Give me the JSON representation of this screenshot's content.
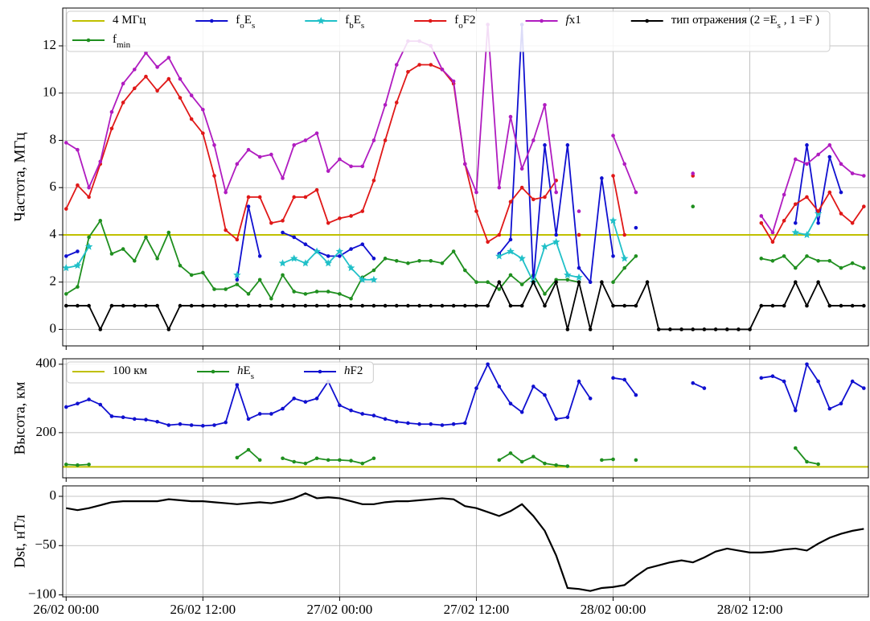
{
  "chart_data": [
    {
      "type": "line",
      "ylabel": "Частота, МГц",
      "grid": true,
      "legend": "upper left",
      "legend_ncol": 6,
      "xlim": [
        -0.3,
        70.4
      ],
      "xticks": [
        0,
        12,
        24,
        36,
        48,
        60
      ],
      "ylim": [
        -0.7,
        13.6
      ],
      "yticks": [
        0,
        2,
        4,
        6,
        8,
        10,
        12
      ],
      "hlines": [
        {
          "name": "4 МГц",
          "value": 4,
          "color": "#c0c000"
        }
      ],
      "x": [
        0,
        1,
        2,
        3,
        4,
        5,
        6,
        7,
        8,
        9,
        10,
        11,
        12,
        13,
        14,
        15,
        16,
        17,
        18,
        19,
        20,
        21,
        22,
        23,
        24,
        25,
        26,
        27,
        28,
        29,
        30,
        31,
        32,
        33,
        34,
        35,
        36,
        37,
        38,
        39,
        40,
        41,
        42,
        43,
        44,
        45,
        46,
        47,
        48,
        49,
        50,
        51,
        52,
        53,
        54,
        55,
        56,
        57,
        58,
        59,
        60,
        61,
        62,
        63,
        64,
        65,
        66,
        67,
        68,
        69,
        70
      ],
      "series": [
        {
          "name": "fmin",
          "color": "#1f8f1f",
          "marker": "o",
          "values": [
            1.5,
            1.8,
            3.9,
            4.6,
            3.2,
            3.4,
            2.9,
            3.9,
            3.0,
            4.1,
            2.7,
            2.3,
            2.4,
            1.7,
            1.7,
            1.9,
            1.5,
            2.1,
            1.3,
            2.3,
            1.6,
            1.5,
            1.6,
            1.6,
            1.5,
            1.3,
            2.2,
            2.5,
            3.0,
            2.9,
            2.8,
            2.9,
            2.9,
            2.8,
            3.3,
            2.5,
            2.0,
            2.0,
            1.7,
            2.3,
            1.9,
            2.3,
            1.5,
            2.1,
            2.1,
            2.0,
            null,
            null,
            2.0,
            2.6,
            3.1,
            null,
            null,
            null,
            null,
            5.2,
            null,
            null,
            null,
            null,
            null,
            3.0,
            2.9,
            3.1,
            2.6,
            3.1,
            2.9,
            2.9,
            2.6,
            2.8,
            2.6
          ]
        },
        {
          "name": "foEs",
          "color": "#1010d0",
          "marker": "o",
          "values": [
            3.1,
            3.3,
            null,
            null,
            null,
            null,
            null,
            null,
            null,
            null,
            null,
            null,
            null,
            null,
            null,
            2.1,
            5.2,
            3.1,
            null,
            4.1,
            3.9,
            3.6,
            3.3,
            3.1,
            3.1,
            3.4,
            3.6,
            3.0,
            null,
            null,
            null,
            null,
            null,
            null,
            null,
            null,
            null,
            null,
            3.2,
            3.8,
            12.9,
            2.0,
            7.8,
            4.0,
            7.8,
            2.6,
            2.0,
            6.4,
            3.1,
            null,
            4.3,
            null,
            null,
            null,
            null,
            null,
            null,
            null,
            null,
            null,
            null,
            null,
            null,
            null,
            4.5,
            7.8,
            4.5,
            7.3,
            5.8,
            null,
            null
          ]
        },
        {
          "name": "fbEs",
          "color": "#20c0c8",
          "marker": "*",
          "values": [
            2.6,
            2.7,
            3.5,
            null,
            null,
            null,
            null,
            null,
            null,
            null,
            null,
            null,
            null,
            null,
            null,
            2.3,
            null,
            null,
            null,
            2.8,
            3.0,
            2.8,
            3.3,
            2.8,
            3.3,
            2.6,
            2.1,
            2.1,
            null,
            null,
            null,
            null,
            null,
            null,
            null,
            null,
            null,
            null,
            3.1,
            3.3,
            3.0,
            2.0,
            3.5,
            3.7,
            2.3,
            2.2,
            null,
            null,
            4.6,
            3.0,
            null,
            null,
            null,
            null,
            null,
            null,
            null,
            null,
            null,
            null,
            null,
            null,
            null,
            null,
            4.1,
            4.0,
            4.9,
            null,
            null,
            null,
            null
          ]
        },
        {
          "name": "foF2",
          "color": "#e01818",
          "marker": "o",
          "values": [
            5.1,
            6.1,
            5.6,
            7.0,
            8.5,
            9.6,
            10.2,
            10.7,
            10.1,
            10.6,
            9.8,
            8.9,
            8.3,
            6.5,
            4.2,
            3.8,
            5.6,
            5.6,
            4.5,
            4.6,
            5.6,
            5.6,
            5.9,
            4.5,
            4.7,
            4.8,
            5.0,
            6.3,
            8.0,
            9.6,
            10.9,
            11.2,
            11.2,
            11.0,
            10.4,
            7.0,
            5.0,
            3.7,
            4.0,
            5.4,
            6.0,
            5.5,
            5.6,
            6.3,
            null,
            4.0,
            null,
            null,
            6.5,
            4.0,
            null,
            null,
            null,
            null,
            null,
            6.5,
            null,
            null,
            null,
            null,
            null,
            4.5,
            3.7,
            4.6,
            5.3,
            5.6,
            5.0,
            5.8,
            4.9,
            4.5,
            5.2
          ]
        },
        {
          "name": "fx1",
          "color": "#b01cc0",
          "marker": "o",
          "values": [
            7.9,
            7.6,
            6.0,
            7.1,
            9.2,
            10.4,
            11.0,
            11.7,
            11.1,
            11.5,
            10.6,
            9.9,
            9.3,
            7.8,
            5.8,
            7.0,
            7.6,
            7.3,
            7.4,
            6.4,
            7.8,
            8.0,
            8.3,
            6.7,
            7.2,
            6.9,
            6.9,
            8.0,
            9.5,
            11.2,
            12.2,
            12.2,
            12.0,
            11.0,
            10.5,
            7.0,
            5.8,
            12.9,
            6.0,
            9.0,
            6.8,
            8.0,
            9.5,
            5.8,
            null,
            5.0,
            null,
            null,
            8.2,
            7.0,
            5.8,
            null,
            null,
            null,
            null,
            6.6,
            null,
            null,
            null,
            null,
            null,
            4.8,
            4.1,
            5.7,
            7.2,
            7.0,
            7.4,
            7.8,
            7.0,
            6.6,
            6.5
          ]
        },
        {
          "name": "тип отражения (2 =Es , 1 =F )",
          "color": "#000000",
          "marker": "o",
          "values": [
            1,
            1,
            1,
            0,
            1,
            1,
            1,
            1,
            1,
            0,
            1,
            1,
            1,
            1,
            1,
            1,
            1,
            1,
            1,
            1,
            1,
            1,
            1,
            1,
            1,
            1,
            1,
            1,
            1,
            1,
            1,
            1,
            1,
            1,
            1,
            1,
            1,
            1,
            2,
            1,
            1,
            2,
            1,
            2,
            0,
            2,
            0,
            2,
            1,
            1,
            1,
            2,
            0,
            0,
            0,
            0,
            0,
            0,
            0,
            0,
            0,
            1,
            1,
            1,
            2,
            1,
            2,
            1,
            1,
            1,
            1
          ]
        }
      ]
    },
    {
      "type": "line",
      "ylabel": "Высота, км",
      "grid": true,
      "legend": "upper left",
      "legend_ncol": 3,
      "xlim": [
        -0.3,
        70.4
      ],
      "xticks": [
        0,
        12,
        24,
        36,
        48,
        60
      ],
      "ylim": [
        68,
        416
      ],
      "yticks": [
        200,
        400
      ],
      "hlines": [
        {
          "name": "100 км",
          "value": 100,
          "color": "#c0c000"
        }
      ],
      "x": [
        0,
        1,
        2,
        3,
        4,
        5,
        6,
        7,
        8,
        9,
        10,
        11,
        12,
        13,
        14,
        15,
        16,
        17,
        18,
        19,
        20,
        21,
        22,
        23,
        24,
        25,
        26,
        27,
        28,
        29,
        30,
        31,
        32,
        33,
        34,
        35,
        36,
        37,
        38,
        39,
        40,
        41,
        42,
        43,
        44,
        45,
        46,
        47,
        48,
        49,
        50,
        51,
        52,
        53,
        54,
        55,
        56,
        57,
        58,
        59,
        60,
        61,
        62,
        63,
        64,
        65,
        66,
        67,
        68,
        69,
        70
      ],
      "series": [
        {
          "name": "hEs",
          "color": "#1f8f1f",
          "marker": "o",
          "values": [
            107,
            105,
            107,
            null,
            null,
            null,
            null,
            null,
            null,
            null,
            null,
            null,
            null,
            null,
            null,
            127,
            150,
            120,
            null,
            125,
            115,
            110,
            125,
            120,
            120,
            118,
            110,
            125,
            null,
            null,
            null,
            null,
            null,
            null,
            null,
            null,
            null,
            null,
            120,
            140,
            115,
            130,
            110,
            105,
            102,
            null,
            null,
            120,
            122,
            null,
            120,
            null,
            null,
            null,
            null,
            null,
            null,
            null,
            null,
            null,
            null,
            null,
            null,
            null,
            155,
            115,
            108,
            null,
            null,
            null,
            null
          ]
        },
        {
          "name": "hF2",
          "color": "#1010d0",
          "marker": "o",
          "values": [
            275,
            285,
            297,
            282,
            248,
            245,
            240,
            238,
            232,
            222,
            225,
            222,
            220,
            222,
            230,
            340,
            240,
            255,
            255,
            270,
            300,
            290,
            300,
            350,
            280,
            265,
            255,
            250,
            240,
            232,
            228,
            225,
            225,
            222,
            225,
            228,
            330,
            400,
            335,
            285,
            260,
            335,
            310,
            240,
            245,
            350,
            300,
            null,
            360,
            355,
            310,
            null,
            null,
            null,
            null,
            345,
            330,
            null,
            null,
            null,
            null,
            360,
            365,
            350,
            265,
            400,
            350,
            270,
            285,
            350,
            330
          ]
        }
      ]
    },
    {
      "type": "line",
      "ylabel": "Dst, нТл",
      "grid": true,
      "xlim": [
        -0.3,
        70.4
      ],
      "xticks": [
        {
          "value": 0,
          "label": "26/02 00:00"
        },
        {
          "value": 12,
          "label": "26/02 12:00"
        },
        {
          "value": 24,
          "label": "27/02 00:00"
        },
        {
          "value": 36,
          "label": "27/02 12:00"
        },
        {
          "value": 48,
          "label": "28/02 00:00"
        },
        {
          "value": 60,
          "label": "28/02 12:00"
        }
      ],
      "ylim": [
        -102,
        10.6
      ],
      "yticks": [
        {
          "value": -100,
          "label": "−100"
        },
        {
          "value": -50,
          "label": "−50"
        },
        0
      ],
      "x": [
        0,
        1,
        2,
        3,
        4,
        5,
        6,
        7,
        8,
        9,
        10,
        11,
        12,
        13,
        14,
        15,
        16,
        17,
        18,
        19,
        20,
        21,
        22,
        23,
        24,
        25,
        26,
        27,
        28,
        29,
        30,
        31,
        32,
        33,
        34,
        35,
        36,
        37,
        38,
        39,
        40,
        41,
        42,
        43,
        44,
        45,
        46,
        47,
        48,
        49,
        50,
        51,
        52,
        53,
        54,
        55,
        56,
        57,
        58,
        59,
        60,
        61,
        62,
        63,
        64,
        65,
        66,
        67,
        68,
        69,
        70
      ],
      "series": [
        {
          "color": "#000000",
          "values": [
            -12,
            -14,
            -12,
            -9,
            -6,
            -5,
            -5,
            -5,
            -5,
            -3,
            -4,
            -5,
            -5,
            -6,
            -7,
            -8,
            -7,
            -6,
            -7,
            -5,
            -2,
            3,
            -2,
            -1,
            -2,
            -5,
            -8,
            -8,
            -6,
            -5,
            -5,
            -4,
            -3,
            -2,
            -3,
            -10,
            -12,
            -16,
            -20,
            -15,
            -8,
            -20,
            -35,
            -60,
            -93,
            -94,
            -96,
            -93,
            -92,
            -90,
            -81,
            -73,
            -70,
            -67,
            -65,
            -67,
            -62,
            -56,
            -53,
            -55,
            -57,
            -57,
            -56,
            -54,
            -53,
            -55,
            -48,
            -42,
            -38,
            -35,
            -33
          ]
        }
      ]
    }
  ]
}
